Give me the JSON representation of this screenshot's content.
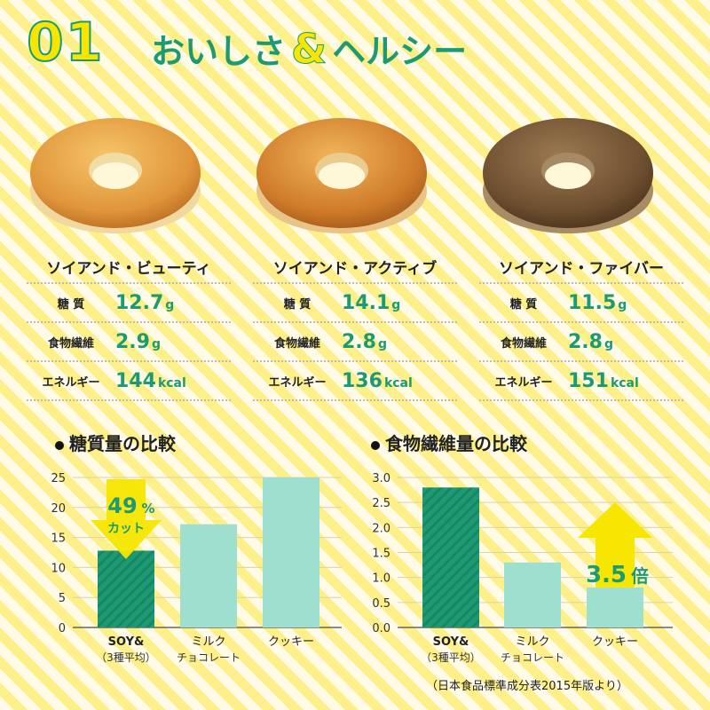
{
  "header": {
    "number": "01",
    "title_left": "おいしさ",
    "amp": "&",
    "title_right": "ヘルシー"
  },
  "products": [
    {
      "name": "ソイアンド・ビューティ",
      "image": "plain-baked-donut",
      "rows": [
        {
          "label": "糖 質",
          "value": "12.7",
          "unit": "g"
        },
        {
          "label": "食物繊維",
          "value": "2.9",
          "unit": "g"
        },
        {
          "label": "エネルギー",
          "value": "144",
          "unit": "kcal"
        }
      ]
    },
    {
      "name": "ソイアンド・アクティブ",
      "image": "golden-baked-donut",
      "rows": [
        {
          "label": "糖 質",
          "value": "14.1",
          "unit": "g"
        },
        {
          "label": "食物繊維",
          "value": "2.8",
          "unit": "g"
        },
        {
          "label": "エネルギー",
          "value": "136",
          "unit": "kcal"
        }
      ]
    },
    {
      "name": "ソイアンド・ファイバー",
      "image": "brown-baked-donut",
      "rows": [
        {
          "label": "糖 質",
          "value": "11.5",
          "unit": "g"
        },
        {
          "label": "食物繊維",
          "value": "2.8",
          "unit": "g"
        },
        {
          "label": "エネルギー",
          "value": "151",
          "unit": "kcal"
        }
      ]
    }
  ],
  "colors": {
    "accent": "#1d9a73",
    "mint": "#9fdfd0",
    "yellow": "#f7e600"
  },
  "chart_data": [
    {
      "type": "bar",
      "title": "糖質量の比較",
      "categories": [
        {
          "line1": "SOY&",
          "line2": "（3種平均）"
        },
        {
          "line1": "ミルク",
          "line2": "チョコレート"
        },
        {
          "line1": "クッキー",
          "line2": ""
        }
      ],
      "values": [
        12.8,
        17.2,
        25
      ],
      "yticks": [
        0,
        5,
        10,
        15,
        20,
        25
      ],
      "ylim": [
        0,
        25
      ],
      "grid": true,
      "annotation": {
        "text_num": "49",
        "text_pct": "%",
        "text_sub": "カット",
        "arrow": "down"
      }
    },
    {
      "type": "bar",
      "title": "食物繊維量の比較",
      "categories": [
        {
          "line1": "SOY&",
          "line2": "（3種平均）"
        },
        {
          "line1": "ミルク",
          "line2": "チョコレート"
        },
        {
          "line1": "クッキー",
          "line2": ""
        }
      ],
      "values": [
        2.8,
        1.3,
        0.8
      ],
      "yticks": [
        "0.0",
        "0.5",
        "1.0",
        "1.5",
        "2.0",
        "2.5",
        "3.0"
      ],
      "ylim": [
        0,
        3
      ],
      "grid": true,
      "annotation": {
        "text_num": "3.5",
        "text_sub": "倍",
        "arrow": "up"
      }
    }
  ],
  "source": "（日本食品標準成分表2015年版より）"
}
